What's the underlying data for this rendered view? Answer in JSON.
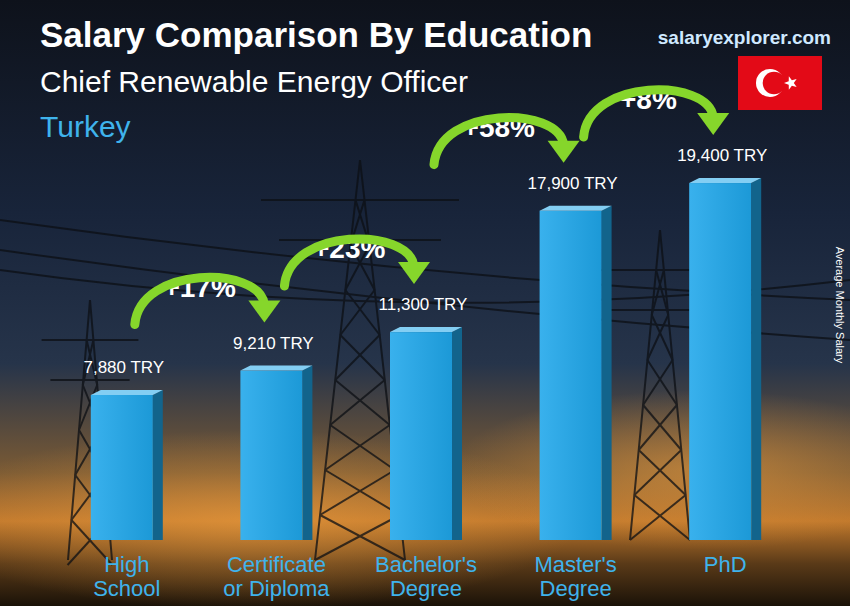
{
  "chart_data": {
    "type": "bar",
    "title": "Salary Comparison By Education",
    "subtitle": "Chief Renewable Energy Officer",
    "location": "Turkey",
    "source": "salaryexplorer.com",
    "y_label": "Average Monthly Salary",
    "categories": [
      "High School",
      "Certificate or Diploma",
      "Bachelor's Degree",
      "Master's Degree",
      "PhD"
    ],
    "values": [
      7880,
      9210,
      11300,
      17900,
      19400
    ],
    "value_labels": [
      "7,880 TRY",
      "9,210 TRY",
      "11,300 TRY",
      "17,900 TRY",
      "19,400 TRY"
    ],
    "annotations": [
      "+17%",
      "+23%",
      "+58%",
      "+8%"
    ],
    "color": "#1ea6ea",
    "ylim": [
      0,
      25000
    ],
    "tick_labels": false,
    "data_labels": true,
    "grid": false
  }
}
